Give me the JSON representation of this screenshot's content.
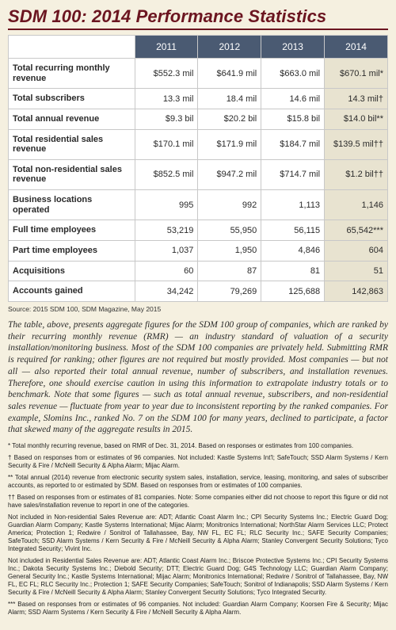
{
  "header": {
    "title_strong": "SDM 100:",
    "title_light": " 2014 Performance Statistics"
  },
  "colors": {
    "title_strong": "#6b1520",
    "title_light": "#4a5a72",
    "header_bg": "#4a5a72",
    "page_bg": "#f5f0e0",
    "highlight_bg": "#e8e3d0",
    "border": "#c8c8c8"
  },
  "table": {
    "columns": [
      "2011",
      "2012",
      "2013",
      "2014"
    ],
    "rows": [
      {
        "label": "Total recurring monthly revenue",
        "cells": [
          "$552.3 mil",
          "$641.9 mil",
          "$663.0 mil",
          "$670.1 mil*"
        ]
      },
      {
        "label": "Total subscribers",
        "cells": [
          "13.3 mil",
          "18.4 mil",
          "14.6 mil",
          "14.3 mil†"
        ]
      },
      {
        "label": "Total annual revenue",
        "cells": [
          "$9.3 bil",
          "$20.2 bil",
          "$15.8 bil",
          "$14.0 bil**"
        ]
      },
      {
        "label": "Total residential sales revenue",
        "cells": [
          "$170.1 mil",
          "$171.9 mil",
          "$184.7 mil",
          "$139.5 mil††"
        ]
      },
      {
        "label": "Total non-residential sales revenue",
        "cells": [
          "$852.5 mil",
          "$947.2 mil",
          "$714.7 mil",
          "$1.2 bil††"
        ]
      },
      {
        "label": "Business locations operated",
        "cells": [
          "995",
          "992",
          "1,113",
          "1,146"
        ]
      },
      {
        "label": "Full time employees",
        "cells": [
          "53,219",
          "55,950",
          "56,115",
          "65,542***"
        ]
      },
      {
        "label": "Part time employees",
        "cells": [
          "1,037",
          "1,950",
          "4,846",
          "604"
        ]
      },
      {
        "label": "Acquisitions",
        "cells": [
          "60",
          "87",
          "81",
          "51"
        ]
      },
      {
        "label": "Accounts gained",
        "cells": [
          "34,242",
          "79,269",
          "125,688",
          "142,863"
        ]
      }
    ]
  },
  "source": "Source: 2015 SDM 100, SDM Magazine, May 2015",
  "explain": "The table, above, presents aggregate figures for the SDM 100 group of companies, which are ranked by their recurring monthly revenue (RMR) — an industry standard of valuation of a security installation/monitoring business. Most of the SDM 100 companies are privately held. Submitting RMR is required for ranking; other figures are not required but mostly provided. Most companies — but not all — also reported their total annual revenue, number of subscribers, and installation revenues. Therefore, one should exercise caution in using this information to extrapolate industry totals or to benchmark. Note that some figures — such as total annual revenue, subscribers, and non-residential sales revenue — fluctuate from year to year due to inconsistent reporting by the ranked companies. For example, Slomins Inc., ranked No. 7 on the SDM 100 for many years, declined to participate, a factor that skewed many of the aggregate results in 2015.",
  "footnotes": [
    "* Total monthly recurring revenue, based on RMR of Dec. 31, 2014. Based on responses or estimates from 100 companies.",
    "† Based on responses from or estimates of 96 companies. Not included: Kastle Systems Int'l; SafeTouch; SSD Alarm Systems / Kern Security & Fire / McNeill Security & Alpha Alarm; Mijac Alarm.",
    "** Total annual (2014) revenue from electronic security system sales, installation, service, leasing, monitoring, and sales of subscriber accounts, as reported to or estimated by SDM. Based on responses from or estimates of 100 companies.",
    "†† Based on responses from or estimates of 81 companies. Note: Some companies either did not choose to report this figure or did not have sales/installation revenue to report in one of the categories.",
    "Not included in Non-residential Sales Revenue are: ADT; Atlantic Coast Alarm Inc.; CPI Security Systems Inc.; Electric Guard Dog; Guardian Alarm Company; Kastle Systems International; Mijac Alarm; Monitronics International; NorthStar Alarm Services LLC; Protect America; Protection 1; Redwire / Sonitrol of Tallahassee, Bay, NW FL, EC FL; RLC Security Inc.; SAFE Security Companies; SafeTouch; SSD Alarm Systems / Kern Security & Fire / McNeill Security & Alpha Alarm; Stanley Convergent Security Solutions; Tyco Integrated Security; Vivint Inc.",
    "Not included in Residential Sales Revenue are: ADT; Atlantic Coast Alarm Inc.; Briscoe Protective Systems Inc.; CPI Security Systems Inc.; Dakota Security Systems Inc.; Diebold Security; DTT; Electric Guard Dog; G4S Technology LLC; Guardian Alarm Company; General Security Inc.; Kastle Systems International; Mijac Alarm; Monitronics International; Redwire / Sonitrol of Tallahassee, Bay, NW FL, EC FL; RLC Security Inc.; Protection 1; SAFE Security Companies; SafeTouch; Sonitrol of Indianapolis; SSD Alarm Systems / Kern Security & Fire / McNeill Security & Alpha Alarm; Stanley Convergent Security Solutions; Tyco Integrated Security.",
    "*** Based on responses from or estimates of 96 companies. Not included: Guardian Alarm Company; Koorsen Fire & Security; Mijac Alarm; SSD Alarm Systems / Kern Security & Fire / McNeill Security & Alpha Alarm."
  ]
}
